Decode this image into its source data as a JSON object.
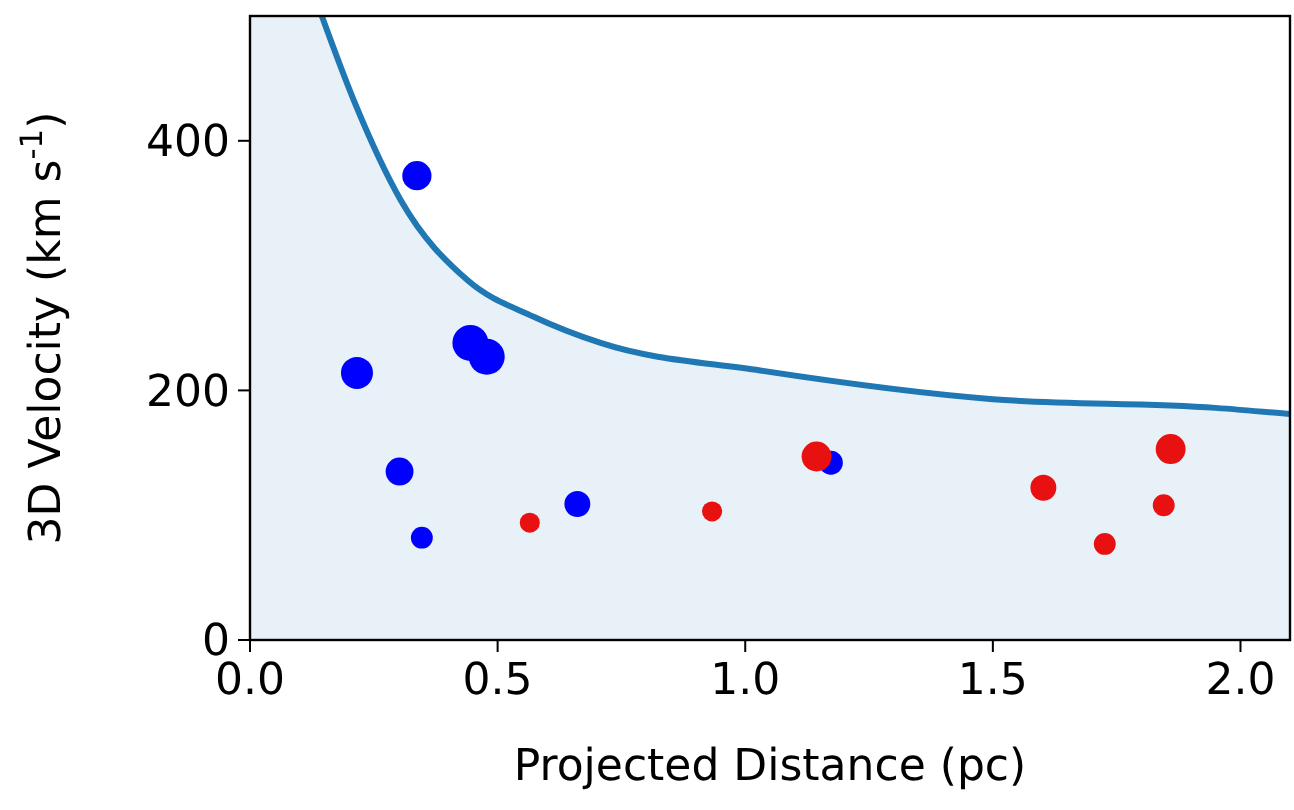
{
  "chart_data": {
    "type": "bubble",
    "xlabel": "Projected Distance (pc)",
    "ylabel": "3D Velocity (km s$^{-1}$)",
    "xlim": [
      0,
      2.1
    ],
    "ylim": [
      0,
      500
    ],
    "xticks": [
      {
        "value": 0,
        "label": "0.0"
      },
      0.5,
      {
        "value": 1,
        "label": "1.0"
      },
      1.5,
      {
        "value": 2,
        "label": "2.0"
      }
    ],
    "yticks": [
      0,
      200,
      400
    ],
    "bands": [
      {
        "axis": "x",
        "from": 0,
        "to": 0.145,
        "color": "#1f77b4"
      }
    ],
    "series": [
      {
        "type": "area",
        "color": "#1f77b4",
        "x": [
          0.145,
          0.21,
          0.305,
          0.44,
          0.573,
          0.708,
          1.03,
          1.5,
          1.95,
          2.1
        ],
        "values": [
          500,
          432,
          352,
          288,
          259,
          238,
          216,
          193,
          186,
          181
        ]
      },
      {
        "color": "#0000ff",
        "x": [
          0.337,
          0.216,
          0.445,
          0.478,
          0.302,
          0.347,
          0.661,
          1.173
        ],
        "values": [
          372,
          214,
          238,
          227,
          135,
          82,
          109,
          142
        ],
        "sizes": [
          0.66,
          0.79,
          1,
          1,
          0.6,
          0.37,
          0.52,
          0.44
        ]
      },
      {
        "color": "#e81010",
        "x": [
          0.565,
          0.933,
          1.144,
          1.602,
          1.726,
          1.845,
          1.859
        ],
        "values": [
          94,
          103,
          147,
          122,
          77,
          108,
          153
        ],
        "sizes": [
          0.31,
          0.31,
          0.69,
          0.52,
          0.37,
          0.37,
          0.69
        ]
      }
    ]
  }
}
